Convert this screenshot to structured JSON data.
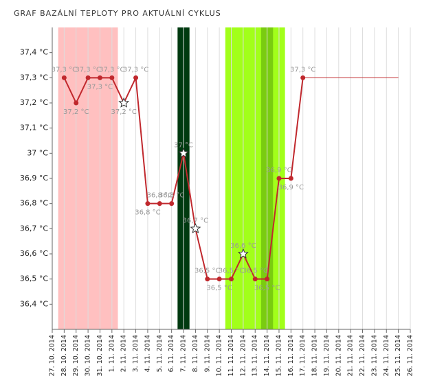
{
  "chart_data": {
    "type": "line",
    "title": "GRAF BAZÁLNÍ TEPLOTY PRO AKTUÁLNÍ CYKLUS",
    "categories": [
      "27. 10. 2014",
      "28. 10. 2014",
      "29. 10. 2014",
      "30. 10. 2014",
      "31. 10. 2014",
      "1. 11. 2014",
      "2. 11. 2014",
      "3. 11. 2014",
      "4. 11. 2014",
      "5. 11. 2014",
      "6. 11. 2014",
      "7. 11. 2014",
      "8. 11. 2014",
      "9. 11. 2014",
      "10. 11. 2014",
      "11. 11. 2014",
      "12. 11. 2014",
      "13. 11. 2014",
      "14. 11. 2014",
      "15. 11. 2014",
      "16. 11. 2014",
      "17. 11. 2014",
      "18. 11. 2014",
      "19. 11. 2014",
      "20. 11. 2014",
      "21. 11. 2014",
      "22. 11. 2014",
      "23. 11. 2014",
      "24. 11. 2014",
      "25. 11. 2014",
      "26. 11. 2014"
    ],
    "series": [
      {
        "color": "#c0282d",
        "values": [
          null,
          37.3,
          37.2,
          37.3,
          37.3,
          37.3,
          37.2,
          37.3,
          36.8,
          36.8,
          36.8,
          37.0,
          36.7,
          36.5,
          36.5,
          36.5,
          36.6,
          36.5,
          36.5,
          36.9,
          36.9,
          37.3,
          null,
          null,
          null,
          null,
          null,
          null,
          null,
          null,
          null
        ],
        "value_labels": [
          null,
          "37,3 °C",
          "37,2 °C",
          "37,3 °C",
          "37,3 °C",
          "37,3 °C",
          "37,2 °C",
          "37,3 °C",
          "36,8 °C",
          "36,8 °C",
          "36,8 °C",
          "37 °C",
          "36,7 °C",
          "36,5 °C",
          "36,5 °C",
          "36,5 °C",
          "36,6 °C",
          "36,5 °C",
          "36,5 °C",
          "36,9 °C",
          "36,9 °C",
          "37,3 °C",
          null,
          null,
          null,
          null,
          null,
          null,
          null,
          null,
          null
        ],
        "star_points": [
          6,
          11,
          12,
          16
        ]
      },
      {
        "color": "#c0282d",
        "values": [
          null,
          null,
          null,
          null,
          null,
          null,
          null,
          null,
          null,
          null,
          null,
          null,
          null,
          null,
          null,
          null,
          null,
          null,
          null,
          null,
          null,
          37.3,
          37.3,
          37.3,
          37.3,
          37.3,
          37.3,
          37.3,
          37.3,
          37.3,
          null
        ]
      }
    ],
    "bands": [
      {
        "from": 1,
        "to": 5,
        "color": "#ffc0c0"
      },
      {
        "from": 11,
        "to": 11,
        "color": "#003a10"
      },
      {
        "from": 15,
        "to": 19,
        "color": "#a2ff1a"
      },
      {
        "from": 18,
        "to": 18,
        "color": "#7acc10"
      }
    ],
    "ylim": [
      36.3,
      37.5
    ],
    "yticks": [
      {
        "value": 36.4,
        "label": "36,4 °C"
      },
      {
        "value": 36.5,
        "label": "36,5 °C"
      },
      {
        "value": 36.6,
        "label": "36,6 °C"
      },
      {
        "value": 36.7,
        "label": "36,7 °C"
      },
      {
        "value": 36.8,
        "label": "36,8 °C"
      },
      {
        "value": 36.9,
        "label": "36,9 °C"
      },
      {
        "value": 37.0,
        "label": "37 °C"
      },
      {
        "value": 37.1,
        "label": "37,1 °C"
      },
      {
        "value": 37.2,
        "label": "37,2 °C"
      },
      {
        "value": 37.3,
        "label": "37,3 °C"
      },
      {
        "value": 37.4,
        "label": "37,4 °C"
      }
    ],
    "grid": true
  }
}
